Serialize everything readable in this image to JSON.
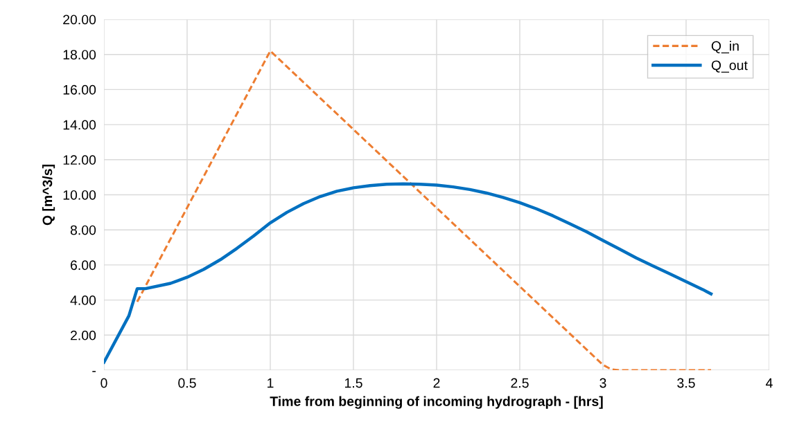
{
  "chart_data": {
    "type": "line",
    "xlabel": "Time from beginning of incoming hydrograph - [hrs]",
    "ylabel": "Q [m^3/s]",
    "xlim": [
      0,
      4
    ],
    "xticks": [
      0,
      0.5,
      1,
      1.5,
      2,
      2.5,
      3,
      3.5,
      4
    ],
    "ylim": [
      0,
      20
    ],
    "yticks": [
      {
        "value": 0,
        "label": "-"
      },
      {
        "value": 2,
        "label": "2.00"
      },
      {
        "value": 4,
        "label": "4.00"
      },
      {
        "value": 6,
        "label": "6.00"
      },
      {
        "value": 8,
        "label": "8.00"
      },
      {
        "value": 10,
        "label": "10.00"
      },
      {
        "value": 12,
        "label": "12.00"
      },
      {
        "value": 14,
        "label": "14.00"
      },
      {
        "value": 16,
        "label": "16.00"
      },
      {
        "value": 18,
        "label": "18.00"
      },
      {
        "value": 20,
        "label": "20.00"
      }
    ],
    "grid": true,
    "legend": "top right",
    "series": [
      {
        "name": "Q_in",
        "color": "#ed7d31",
        "line_style": "dashed",
        "x": [
          0.2,
          1,
          3.0,
          3.05,
          3.1,
          3.65
        ],
        "values": [
          3.9,
          18.2,
          0.3,
          0.05,
          0,
          0
        ]
      },
      {
        "name": "Q_out",
        "color": "#0070c0",
        "line_style": "solid",
        "x": [
          0,
          0.15,
          0.2,
          0.25,
          0.4,
          0.5,
          0.6,
          0.7,
          0.8,
          0.9,
          1.0,
          1.1,
          1.2,
          1.3,
          1.4,
          1.5,
          1.6,
          1.7,
          1.8,
          1.9,
          2.0,
          2.1,
          2.2,
          2.3,
          2.4,
          2.5,
          2.6,
          2.7,
          2.8,
          2.9,
          3.0,
          3.1,
          3.2,
          3.3,
          3.4,
          3.5,
          3.6,
          3.65
        ],
        "values": [
          0.45,
          3.1,
          4.65,
          4.65,
          4.95,
          5.3,
          5.75,
          6.3,
          6.95,
          7.65,
          8.4,
          9.0,
          9.5,
          9.9,
          10.2,
          10.4,
          10.52,
          10.6,
          10.62,
          10.6,
          10.55,
          10.45,
          10.3,
          10.1,
          9.85,
          9.55,
          9.2,
          8.8,
          8.35,
          7.9,
          7.4,
          6.9,
          6.4,
          5.95,
          5.5,
          5.05,
          4.6,
          4.35
        ]
      }
    ]
  }
}
